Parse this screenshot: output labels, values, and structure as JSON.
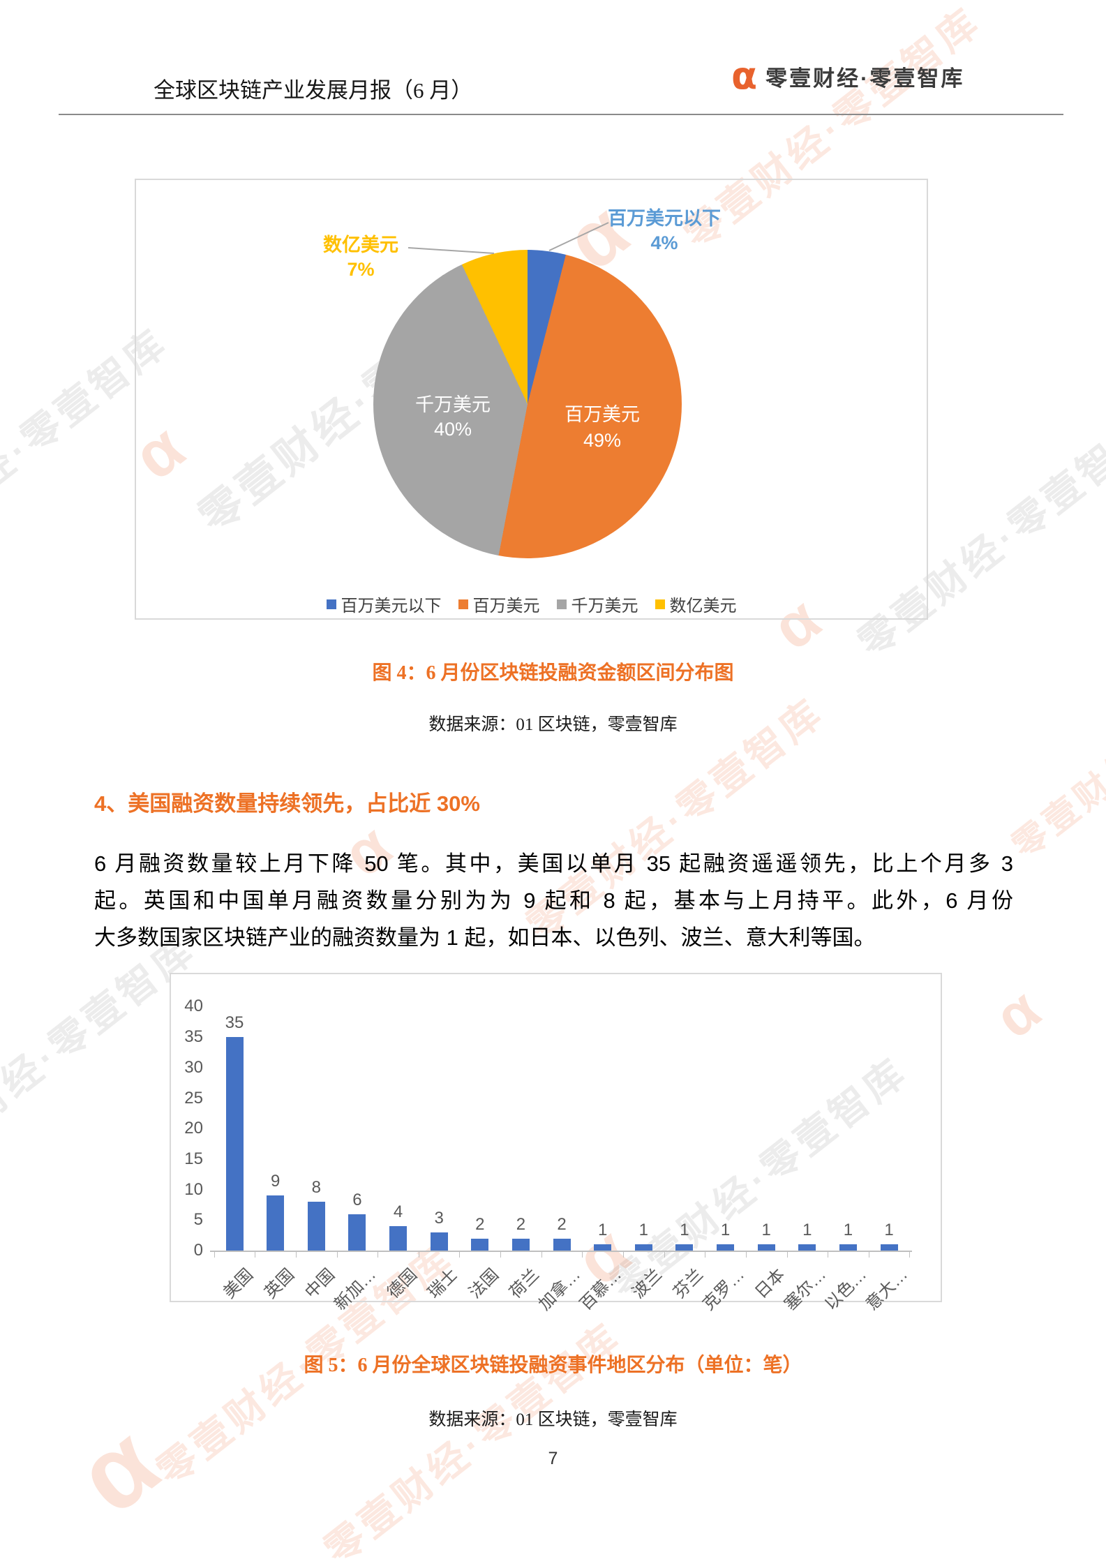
{
  "header": {
    "title": "全球区块链产业发展月报（6 月）",
    "logo_alpha": "α",
    "logo_text": "零壹财经·零壹智库"
  },
  "watermark": {
    "text": "零壹财经·零壹智库",
    "alpha": "α"
  },
  "figure4": {
    "caption": "图 4：6 月份区块链投融资金额区间分布图",
    "source": "数据来源：01 区块链，零壹智库"
  },
  "section": {
    "heading": "4、美国融资数量持续领先，占比近 30%"
  },
  "paragraph": {
    "line1": "6 月融资数量较上月下降 50 笔。其中，美国以单月 35 起融资遥遥领先，比上个月多 3",
    "line2": "起。英国和中国单月融资数量分别为为 9 起和 8 起，基本与上月持平。此外，6 月份",
    "line3": "大多数国家区块链产业的融资数量为 1 起，如日本、以色列、波兰、意大利等国。"
  },
  "figure5": {
    "caption": "图 5：6 月份全球区块链投融资事件地区分布（单位：笔）",
    "source": "数据来源：01 区块链，零壹智库"
  },
  "page": {
    "number": "7"
  },
  "chart_data": [
    {
      "type": "pie",
      "title": "图 4：6 月份区块链投融资金额区间分布图",
      "start_angle_deg": 0,
      "direction": "clockwise",
      "legend_position": "bottom",
      "slices": [
        {
          "label": "百万美元以下",
          "value": 4,
          "pct_label": "4%",
          "color": "#4472C4",
          "callout_color": "#5B9BD5",
          "label_position": "callout"
        },
        {
          "label": "百万美元",
          "value": 49,
          "pct_label": "49%",
          "color": "#ED7D31",
          "callout_color": "#FFFFFF",
          "label_position": "inside"
        },
        {
          "label": "千万美元",
          "value": 40,
          "pct_label": "40%",
          "color": "#A5A5A5",
          "callout_color": "#FFFFFF",
          "label_position": "inside"
        },
        {
          "label": "数亿美元",
          "value": 7,
          "pct_label": "7%",
          "color": "#FFC000",
          "callout_color": "#FFC000",
          "label_position": "callout"
        }
      ]
    },
    {
      "type": "bar",
      "title": "图 5：6 月份全球区块链投融资事件地区分布（单位：笔）",
      "categories": [
        "美国",
        "英国",
        "中国",
        "新加…",
        "德国",
        "瑞士",
        "法国",
        "荷兰",
        "加拿…",
        "百慕…",
        "波兰",
        "芬兰",
        "克罗…",
        "日本",
        "塞尔…",
        "以色…",
        "意大…"
      ],
      "values": [
        35,
        9,
        8,
        6,
        4,
        3,
        2,
        2,
        2,
        1,
        1,
        1,
        1,
        1,
        1,
        1,
        1
      ],
      "bar_color": "#4472C4",
      "ylabel": "",
      "xlabel": "",
      "ylim": [
        0,
        40
      ],
      "ytick_step": 5,
      "grid": false,
      "value_labels": true
    }
  ],
  "colors": {
    "accent_orange": "#ED7125",
    "logo_orange": "#E8622D",
    "pie_blue": "#4472C4",
    "pie_orange": "#ED7D31",
    "pie_gray": "#A5A5A5",
    "pie_yellow": "#FFC000",
    "callout_blue": "#5B9BD5",
    "axis_gray": "#BFBFBF",
    "text_gray": "#595959",
    "border_gray": "#D9D9D9"
  }
}
